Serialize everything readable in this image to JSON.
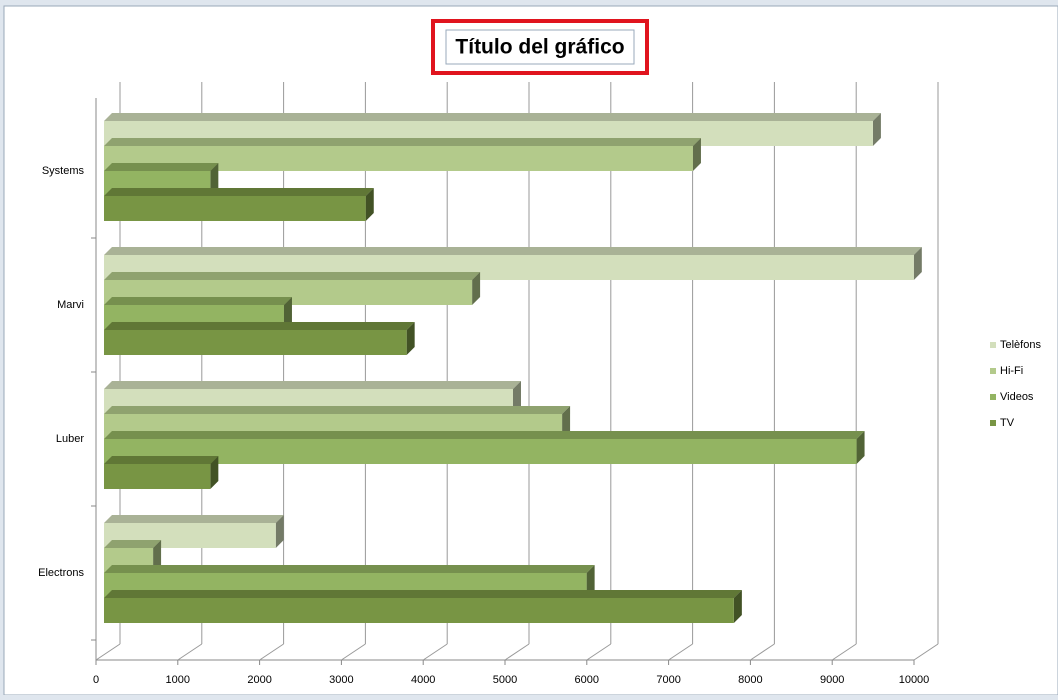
{
  "chart_data": {
    "type": "bar3d-horizontal",
    "title": "Título del gráfico",
    "categories": [
      "Electrons",
      "Luber",
      "Marvi",
      "Systems"
    ],
    "series": [
      {
        "name": "Telèfons",
        "color": "#d3dfbc",
        "values": [
          2100,
          5000,
          9900,
          9400
        ]
      },
      {
        "name": "Hi-Fi",
        "color": "#b3ca8b",
        "values": [
          600,
          5600,
          4500,
          7200
        ]
      },
      {
        "name": "Videos",
        "color": "#93b462",
        "values": [
          5900,
          9200,
          2200,
          1300
        ]
      },
      {
        "name": "TV",
        "color": "#789544",
        "values": [
          7700,
          1300,
          3700,
          3200
        ]
      }
    ],
    "xlim": [
      0,
      10000
    ],
    "xticks": [
      0,
      1000,
      2000,
      3000,
      4000,
      5000,
      6000,
      7000,
      8000,
      9000,
      10000
    ],
    "grid": true,
    "legend": "right"
  }
}
